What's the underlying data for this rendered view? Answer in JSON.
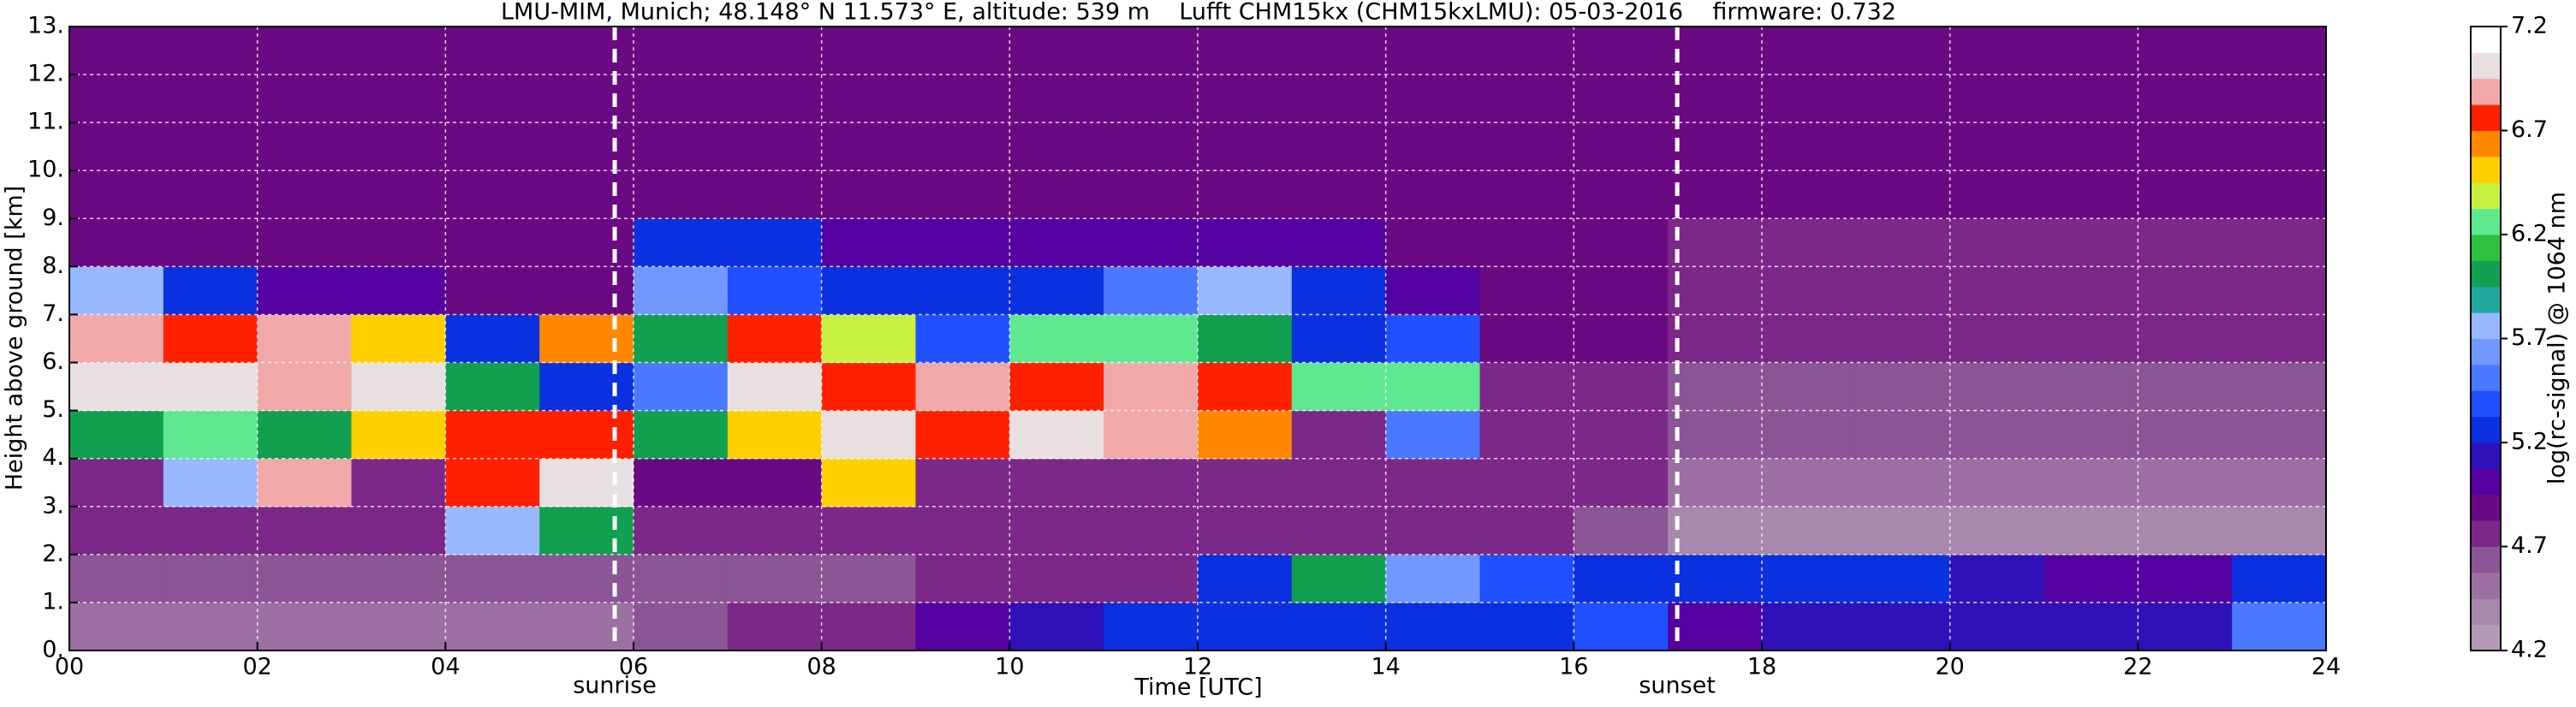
{
  "chart_data": {
    "type": "heatmap",
    "title": "LMU-MIM, Munich; 48.148° N 11.573° E, altitude: 539 m    Lufft CHM15kx (CHM15kxLMU): 05-03-2016    firmware: 0.732",
    "x_label": "Time [UTC]",
    "y_label": "Height above ground [km]",
    "xlim": [
      0,
      24
    ],
    "xticks": [
      {
        "value": 0,
        "label": "00"
      },
      {
        "value": 2,
        "label": "02"
      },
      {
        "value": 4,
        "label": "04"
      },
      {
        "value": 6,
        "label": "06"
      },
      {
        "value": 8,
        "label": "08"
      },
      {
        "value": 10,
        "label": "10"
      },
      {
        "value": 12,
        "label": "12"
      },
      {
        "value": 14,
        "label": "14"
      },
      {
        "value": 16,
        "label": "16"
      },
      {
        "value": 18,
        "label": "18"
      },
      {
        "value": 20,
        "label": "20"
      },
      {
        "value": 22,
        "label": "22"
      },
      {
        "value": 24,
        "label": "24"
      }
    ],
    "ylim": [
      0,
      13
    ],
    "yticks": [
      {
        "value": 0,
        "label": "0."
      },
      {
        "value": 1,
        "label": "1."
      },
      {
        "value": 2,
        "label": "2."
      },
      {
        "value": 3,
        "label": "3."
      },
      {
        "value": 4,
        "label": "4."
      },
      {
        "value": 5,
        "label": "5."
      },
      {
        "value": 6,
        "label": "6."
      },
      {
        "value": 7,
        "label": "7."
      },
      {
        "value": 8,
        "label": "8."
      },
      {
        "value": 9,
        "label": "9."
      },
      {
        "value": 10,
        "label": "10."
      },
      {
        "value": 11,
        "label": "11."
      },
      {
        "value": 12,
        "label": "12."
      },
      {
        "value": 13,
        "label": "13."
      }
    ],
    "grid": true,
    "x_edges": [
      0,
      1,
      2,
      3,
      4,
      5,
      6,
      7,
      8,
      9,
      10,
      11,
      12,
      13,
      14,
      15,
      16,
      17,
      18,
      19,
      20,
      21,
      22,
      23,
      24
    ],
    "y_edges": [
      0,
      1,
      2,
      3,
      4,
      5,
      6,
      7,
      8,
      9,
      10,
      11,
      12,
      13
    ],
    "z": [
      [
        4.5,
        4.5,
        4.5,
        4.5,
        4.5,
        4.5,
        4.6,
        4.7,
        4.8,
        5.0,
        5.1,
        5.2,
        5.2,
        5.3,
        5.3,
        5.3,
        5.4,
        5.0,
        5.1,
        5.1,
        5.1,
        5.1,
        5.1,
        5.5
      ],
      [
        4.6,
        4.6,
        4.6,
        4.6,
        4.6,
        4.6,
        4.6,
        4.6,
        4.6,
        4.7,
        4.7,
        4.7,
        5.2,
        6.0,
        5.6,
        5.4,
        5.3,
        5.2,
        5.2,
        5.2,
        5.1,
        5.0,
        5.0,
        5.2
      ],
      [
        4.8,
        4.8,
        4.8,
        4.8,
        5.8,
        6.0,
        4.8,
        4.8,
        4.8,
        4.8,
        4.8,
        4.8,
        4.8,
        4.8,
        4.7,
        4.7,
        4.6,
        4.4,
        4.4,
        4.4,
        4.4,
        4.4,
        4.4,
        4.4
      ],
      [
        4.8,
        5.8,
        6.9,
        4.8,
        6.8,
        7.0,
        4.9,
        4.9,
        6.5,
        4.8,
        4.8,
        4.8,
        4.8,
        4.8,
        4.8,
        4.8,
        4.7,
        4.5,
        4.5,
        4.5,
        4.5,
        4.5,
        4.5,
        4.5
      ],
      [
        6.0,
        6.2,
        6.0,
        6.5,
        6.8,
        6.8,
        6.0,
        6.5,
        7.0,
        6.8,
        7.0,
        6.9,
        6.6,
        4.8,
        5.5,
        4.8,
        4.8,
        4.6,
        4.6,
        4.6,
        4.6,
        4.6,
        4.6,
        4.6
      ],
      [
        7.0,
        7.0,
        6.9,
        7.0,
        6.0,
        5.2,
        5.5,
        7.0,
        6.8,
        6.9,
        6.8,
        6.9,
        6.7,
        6.2,
        6.2,
        4.8,
        4.8,
        4.6,
        4.6,
        4.6,
        4.6,
        4.6,
        4.6,
        4.6
      ],
      [
        6.9,
        6.8,
        6.9,
        6.5,
        5.3,
        6.6,
        6.0,
        6.7,
        6.4,
        5.4,
        6.3,
        6.2,
        6.0,
        5.3,
        5.4,
        4.9,
        4.9,
        4.7,
        4.7,
        4.7,
        4.7,
        4.7,
        4.7,
        4.7
      ],
      [
        5.8,
        5.2,
        5.0,
        5.0,
        4.9,
        4.9,
        5.6,
        5.4,
        5.3,
        5.3,
        5.3,
        5.5,
        5.8,
        5.3,
        5.0,
        4.9,
        4.9,
        4.8,
        4.8,
        4.8,
        4.8,
        4.8,
        4.8,
        4.8
      ],
      [
        4.9,
        4.9,
        4.9,
        4.9,
        4.9,
        4.9,
        5.3,
        5.3,
        5.0,
        5.0,
        5.0,
        5.0,
        5.0,
        5.0,
        4.9,
        4.9,
        4.9,
        4.8,
        4.8,
        4.8,
        4.8,
        4.8,
        4.8,
        4.8
      ],
      [
        4.9,
        4.9,
        4.9,
        4.9,
        4.9,
        4.9,
        4.9,
        4.9,
        4.9,
        4.9,
        4.9,
        4.9,
        4.9,
        4.9,
        4.9,
        4.9,
        4.9,
        4.9,
        4.9,
        4.9,
        4.9,
        4.9,
        4.9,
        4.9
      ],
      [
        4.9,
        4.9,
        4.9,
        4.9,
        4.9,
        4.9,
        4.9,
        4.9,
        4.9,
        4.9,
        4.9,
        4.9,
        4.9,
        4.9,
        4.9,
        4.9,
        4.9,
        4.9,
        4.9,
        4.9,
        4.9,
        4.9,
        4.9,
        4.9
      ],
      [
        4.9,
        4.9,
        4.9,
        4.9,
        4.9,
        4.9,
        4.9,
        4.9,
        4.9,
        4.9,
        4.9,
        4.9,
        4.9,
        4.9,
        4.9,
        4.9,
        4.9,
        4.9,
        4.9,
        4.9,
        4.9,
        4.9,
        4.9,
        4.9
      ],
      [
        4.9,
        4.9,
        4.9,
        4.9,
        4.9,
        4.9,
        4.9,
        4.9,
        4.9,
        4.9,
        4.9,
        4.9,
        4.9,
        4.9,
        4.9,
        4.9,
        4.9,
        4.9,
        4.9,
        4.9,
        4.9,
        4.9,
        4.9,
        4.9
      ]
    ],
    "vlines": [
      {
        "x": 5.8,
        "label": "sunrise"
      },
      {
        "x": 17.1,
        "label": "sunset"
      }
    ],
    "colorbar": {
      "label": "log(rc-signal) @ 1064 nm",
      "lim": [
        4.2,
        7.2
      ],
      "ticks": [
        4.2,
        4.7,
        5.2,
        5.7,
        6.2,
        6.7,
        7.2
      ],
      "colors": [
        "#b39bb5",
        "#a888ad",
        "#9c70a2",
        "#8c5595",
        "#7c2888",
        "#6a0a82",
        "#5500a0",
        "#3010b8",
        "#0a30e0",
        "#2050ff",
        "#4a78ff",
        "#7098ff",
        "#98b8ff",
        "#20a8a0",
        "#10a050",
        "#30c040",
        "#60e890",
        "#c8f040",
        "#ffd000",
        "#ff8800",
        "#ff2000",
        "#f0a8a8",
        "#e8e0e0",
        "#ffffff"
      ]
    }
  }
}
